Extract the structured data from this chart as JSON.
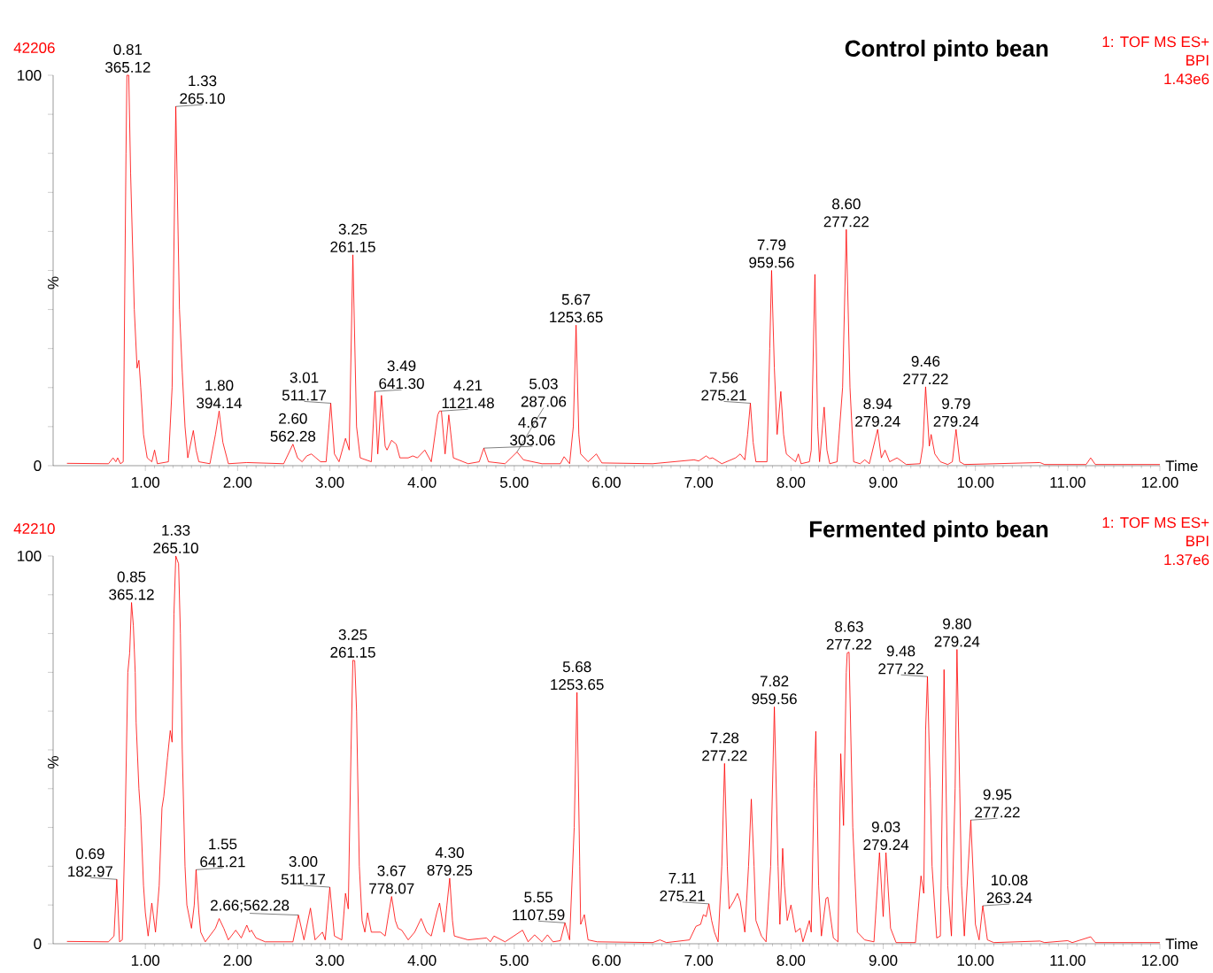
{
  "chart_data": [
    {
      "type": "line",
      "title": "Control pinto bean",
      "subtitle": "42206",
      "xlabel": "Time",
      "ylabel": "%",
      "color": "#ff0000",
      "xlim": [
        0,
        12
      ],
      "ylim": [
        0,
        100
      ],
      "xticks": [
        {
          "value": 1,
          "label": "1.00"
        },
        {
          "value": 2,
          "label": "2.00"
        },
        {
          "value": 3,
          "label": "3.00"
        },
        {
          "value": 4,
          "label": "4.00"
        },
        {
          "value": 5,
          "label": "5.00"
        },
        {
          "value": 6,
          "label": "6.00"
        },
        {
          "value": 7,
          "label": "7.00"
        },
        {
          "value": 8,
          "label": "8.00"
        },
        {
          "value": 9,
          "label": "9.00"
        },
        {
          "value": 10,
          "label": "10.00"
        },
        {
          "value": 11,
          "label": "11.00"
        },
        {
          "value": 12,
          "label": "12.00"
        }
      ],
      "yticks": [
        0,
        {
          "value": 10,
          "label": null
        },
        {
          "value": 20,
          "label": null
        },
        {
          "value": 30,
          "label": null
        },
        {
          "value": 40,
          "label": null
        },
        {
          "value": 50,
          "label": null
        },
        {
          "value": 60,
          "label": null
        },
        {
          "value": 70,
          "label": null
        },
        {
          "value": 80,
          "label": null
        },
        {
          "value": 90,
          "label": null
        },
        100
      ],
      "x": [
        0.15,
        0.6,
        0.65,
        0.68,
        0.7,
        0.73,
        0.76,
        0.79,
        0.8,
        0.82,
        0.84,
        0.88,
        0.91,
        0.93,
        0.95,
        0.98,
        1.02,
        1.07,
        1.1,
        1.13,
        1.25,
        1.29,
        1.33,
        1.37,
        1.4,
        1.43,
        1.46,
        1.52,
        1.55,
        1.58,
        1.7,
        1.76,
        1.8,
        1.84,
        1.9,
        2.1,
        2.5,
        2.6,
        2.65,
        2.7,
        2.75,
        2.8,
        2.85,
        2.9,
        2.96,
        3.01,
        3.05,
        3.1,
        3.17,
        3.21,
        3.25,
        3.29,
        3.33,
        3.45,
        3.49,
        3.52,
        3.56,
        3.6,
        3.62,
        3.67,
        3.72,
        3.76,
        3.85,
        3.9,
        3.95,
        4.03,
        4.1,
        4.17,
        4.19,
        4.21,
        4.25,
        4.29,
        4.34,
        4.5,
        4.62,
        4.67,
        4.72,
        4.9,
        5.03,
        5.1,
        5.3,
        5.5,
        5.54,
        5.6,
        5.64,
        5.67,
        5.7,
        5.72,
        5.8,
        5.89,
        5.95,
        6.5,
        6.95,
        7.0,
        7.08,
        7.12,
        7.15,
        7.25,
        7.4,
        7.45,
        7.5,
        7.53,
        7.56,
        7.59,
        7.62,
        7.74,
        7.77,
        7.79,
        7.82,
        7.85,
        7.89,
        7.92,
        7.95,
        8.0,
        8.05,
        8.08,
        8.11,
        8.2,
        8.22,
        8.26,
        8.29,
        8.31,
        8.36,
        8.39,
        8.42,
        8.5,
        8.56,
        8.6,
        8.64,
        8.68,
        8.75,
        8.8,
        8.85,
        8.94,
        8.98,
        9.02,
        9.07,
        9.15,
        9.25,
        9.4,
        9.43,
        9.46,
        9.5,
        9.52,
        9.56,
        9.62,
        9.7,
        9.75,
        9.79,
        9.83,
        9.88,
        10.7,
        10.75,
        11.2,
        11.25,
        11.3,
        12.0
      ],
      "values": [
        0.6,
        0.5,
        2,
        1,
        2,
        0.5,
        1,
        80,
        100,
        100,
        75,
        40,
        25,
        27,
        20,
        8,
        2,
        1,
        4,
        0.5,
        1,
        20,
        92,
        40,
        24,
        10,
        2,
        9,
        4,
        1,
        0.5,
        8,
        14,
        6,
        0.5,
        0.8,
        0.5,
        5.5,
        2,
        1,
        2.5,
        3,
        2,
        1,
        1,
        16,
        3,
        1,
        7,
        4,
        54,
        10,
        2,
        1,
        19,
        3,
        18,
        5,
        4,
        6.5,
        5.5,
        2,
        2,
        2.5,
        2,
        4,
        1,
        13,
        14,
        14,
        3,
        13,
        2,
        0.5,
        1,
        4.5,
        1,
        0.5,
        3.5,
        1.5,
        0.5,
        0.5,
        2.3,
        0.5,
        10,
        36,
        8,
        3,
        1,
        3,
        0.7,
        0.5,
        1.5,
        1.2,
        2.5,
        1.8,
        2,
        0.5,
        2,
        3,
        1.5,
        8,
        16,
        6,
        1,
        1,
        30,
        50,
        25,
        8,
        19,
        8,
        3,
        2,
        1,
        3,
        0.5,
        1,
        4,
        49,
        10,
        1,
        15,
        4,
        0.5,
        1,
        20,
        60.5,
        20,
        1,
        0.5,
        1.5,
        0.5,
        9.3,
        2,
        4,
        1,
        2,
        0.3,
        0.5,
        5,
        20.2,
        5,
        8,
        3,
        1,
        0.3,
        1,
        9.3,
        1,
        0.3,
        0.8,
        0.3,
        0.3,
        2,
        0.3,
        0.3
      ],
      "annotations": [
        {
          "text": "0.81 365.12",
          "x": 0.81,
          "y": 100
        },
        {
          "text": "1.33 265.10",
          "x": 1.33,
          "y": 92
        },
        {
          "text": "1.80 394.14",
          "x": 1.8,
          "y": 14
        },
        {
          "text": "2.60 562.28",
          "x": 2.6,
          "y": 5.5
        },
        {
          "text": "3.01 511.17",
          "x": 3.01,
          "y": 16
        },
        {
          "text": "3.25 261.15",
          "x": 3.25,
          "y": 54
        },
        {
          "text": "3.49 641.30",
          "x": 3.49,
          "y": 19
        },
        {
          "text": "4.21 1121.48",
          "x": 4.21,
          "y": 14
        },
        {
          "text": "4.67 303.06",
          "x": 4.67,
          "y": 4.5
        },
        {
          "text": "5.03 287.06",
          "x": 5.03,
          "y": 3.5
        },
        {
          "text": "5.67 1253.65",
          "x": 5.67,
          "y": 36
        },
        {
          "text": "7.56 275.21",
          "x": 7.56,
          "y": 16
        },
        {
          "text": "7.79 959.56",
          "x": 7.79,
          "y": 50
        },
        {
          "text": "8.60 277.22",
          "x": 8.6,
          "y": 60.5
        },
        {
          "text": "8.94 279.24",
          "x": 8.94,
          "y": 9.3
        },
        {
          "text": "9.46 277.22",
          "x": 9.46,
          "y": 20.2
        },
        {
          "text": "9.79 279.24",
          "x": 9.79,
          "y": 9.3
        },
        "1: TOF MS ES+",
        "BPI",
        "1.43e6"
      ]
    },
    {
      "type": "line",
      "title": "Fermented pinto bean",
      "subtitle": "42210",
      "xlabel": "Time",
      "ylabel": "%",
      "color": "#ff0000",
      "xlim": [
        0,
        12
      ],
      "ylim": [
        0,
        100
      ],
      "xticks": [
        {
          "value": 1,
          "label": "1.00"
        },
        {
          "value": 2,
          "label": "2.00"
        },
        {
          "value": 3,
          "label": "3.00"
        },
        {
          "value": 4,
          "label": "4.00"
        },
        {
          "value": 5,
          "label": "5.00"
        },
        {
          "value": 6,
          "label": "6.00"
        },
        {
          "value": 7,
          "label": "7.00"
        },
        {
          "value": 8,
          "label": "8.00"
        },
        {
          "value": 9,
          "label": "9.00"
        },
        {
          "value": 10,
          "label": "10.00"
        },
        {
          "value": 11,
          "label": "11.00"
        },
        {
          "value": 12,
          "label": "12.00"
        }
      ],
      "yticks": [
        0,
        {
          "value": 10,
          "label": null
        },
        {
          "value": 20,
          "label": null
        },
        {
          "value": 30,
          "label": null
        },
        {
          "value": 40,
          "label": null
        },
        {
          "value": 50,
          "label": null
        },
        {
          "value": 60,
          "label": null
        },
        {
          "value": 70,
          "label": null
        },
        {
          "value": 80,
          "label": null
        },
        {
          "value": 90,
          "label": null
        },
        100
      ],
      "x": [
        0.15,
        0.6,
        0.66,
        0.69,
        0.72,
        0.75,
        0.78,
        0.81,
        0.83,
        0.85,
        0.87,
        0.88,
        0.89,
        0.9,
        0.93,
        0.95,
        0.98,
        1.0,
        1.03,
        1.07,
        1.11,
        1.15,
        1.18,
        1.2,
        1.24,
        1.27,
        1.29,
        1.31,
        1.33,
        1.36,
        1.38,
        1.4,
        1.43,
        1.45,
        1.5,
        1.53,
        1.55,
        1.58,
        1.6,
        1.65,
        1.76,
        1.8,
        1.85,
        1.9,
        1.98,
        2.04,
        2.1,
        2.13,
        2.15,
        2.2,
        2.3,
        2.6,
        2.66,
        2.72,
        2.79,
        2.84,
        2.92,
        2.95,
        3.0,
        3.05,
        3.13,
        3.17,
        3.2,
        3.23,
        3.25,
        3.27,
        3.29,
        3.32,
        3.35,
        3.38,
        3.41,
        3.45,
        3.55,
        3.6,
        3.64,
        3.67,
        3.71,
        3.74,
        3.78,
        3.85,
        3.92,
        3.99,
        4.05,
        4.1,
        4.16,
        4.19,
        4.24,
        4.27,
        4.3,
        4.33,
        4.35,
        4.5,
        4.7,
        4.74,
        4.78,
        4.9,
        5.09,
        5.15,
        5.22,
        5.3,
        5.36,
        5.42,
        5.5,
        5.55,
        5.6,
        5.65,
        5.68,
        5.71,
        5.72,
        5.76,
        5.8,
        5.9,
        6.5,
        6.58,
        6.65,
        6.9,
        6.97,
        7.02,
        7.05,
        7.08,
        7.11,
        7.14,
        7.17,
        7.21,
        7.25,
        7.28,
        7.31,
        7.33,
        7.38,
        7.42,
        7.45,
        7.5,
        7.54,
        7.57,
        7.6,
        7.62,
        7.68,
        7.73,
        7.78,
        7.82,
        7.86,
        7.88,
        7.91,
        7.93,
        7.96,
        8.0,
        8.05,
        8.1,
        8.13,
        8.2,
        8.22,
        8.25,
        8.27,
        8.3,
        8.33,
        8.38,
        8.4,
        8.46,
        8.51,
        8.54,
        8.57,
        8.6,
        8.61,
        8.63,
        8.67,
        8.72,
        8.8,
        8.9,
        8.96,
        9.0,
        9.03,
        9.08,
        9.14,
        9.35,
        9.41,
        9.44,
        9.46,
        9.48,
        9.51,
        9.53,
        9.58,
        9.62,
        9.66,
        9.7,
        9.74,
        9.78,
        9.8,
        9.83,
        9.85,
        9.88,
        9.95,
        10.0,
        10.04,
        10.08,
        10.13,
        10.2,
        10.7,
        10.75,
        11.0,
        11.05,
        11.25,
        11.3,
        12.0
      ],
      "values": [
        0.6,
        0.5,
        2,
        16.6,
        0.5,
        1,
        30,
        70,
        75,
        88,
        82,
        76,
        70,
        57,
        40,
        33,
        15,
        8,
        2,
        10.5,
        3,
        15,
        35,
        38,
        48,
        55,
        52,
        85,
        100,
        98,
        80,
        50,
        20,
        10,
        4,
        10,
        19.1,
        8,
        3,
        0.5,
        4,
        6.5,
        4,
        1,
        3.5,
        1.5,
        4.8,
        3,
        3.5,
        1.5,
        0.5,
        0.5,
        7.4,
        1,
        9.2,
        1,
        3,
        1,
        14.6,
        2,
        1,
        13,
        9,
        50,
        73.1,
        73,
        60,
        20,
        6,
        3,
        8,
        3,
        3,
        2,
        8,
        12.2,
        6,
        4,
        3.5,
        1,
        3,
        6.5,
        3,
        2,
        8,
        10.5,
        3,
        10,
        16.9,
        6,
        2,
        1,
        1.5,
        0.5,
        2,
        0.5,
        3.5,
        0.5,
        2.3,
        0.5,
        2.3,
        0.5,
        0.8,
        5.4,
        1,
        30,
        64.8,
        20,
        5,
        7.5,
        1,
        0.5,
        0.3,
        1,
        0.3,
        1,
        4.5,
        5,
        7.5,
        7,
        10.3,
        6,
        3,
        0.5,
        20,
        46.5,
        20,
        9,
        11,
        13,
        11,
        3,
        20,
        37.3,
        20,
        6,
        2,
        0.5,
        20,
        61.1,
        20,
        5,
        24.6,
        15,
        6,
        10,
        3,
        4,
        0.5,
        6,
        3,
        40,
        54.8,
        15,
        2,
        11.7,
        12,
        1.5,
        0.5,
        49,
        30.5,
        70,
        75,
        75.2,
        30,
        3,
        1,
        0.5,
        23.5,
        7,
        23.5,
        4,
        0.3,
        0.3,
        17.5,
        13,
        55,
        68.9,
        40,
        20,
        1.5,
        2,
        70.7,
        15,
        2,
        40,
        75.9,
        40,
        15,
        2,
        31.9,
        5,
        1,
        9.8,
        1,
        0.3,
        0.7,
        0.3,
        0.8,
        0.3,
        1.8,
        0.3,
        0.3
      ],
      "annotations": [
        {
          "text": "0.69 182.97",
          "x": 0.69,
          "y": 16.6
        },
        {
          "text": "0.85 365.12",
          "x": 0.85,
          "y": 88
        },
        {
          "text": "1.33 265.10",
          "x": 1.33,
          "y": 100
        },
        {
          "text": "1.55 641.21",
          "x": 1.55,
          "y": 19.1
        },
        {
          "text": "2.66;562.28",
          "x": 2.66,
          "y": 7.4
        },
        {
          "text": "3.00 511.17",
          "x": 3.0,
          "y": 14.6
        },
        {
          "text": "3.25 261.15",
          "x": 3.25,
          "y": 73.1
        },
        {
          "text": "3.67 778.07",
          "x": 3.67,
          "y": 12.2
        },
        {
          "text": "4.30 879.25",
          "x": 4.3,
          "y": 16.9
        },
        {
          "text": "5.55 1107.59",
          "x": 5.55,
          "y": 5.4
        },
        {
          "text": "5.68 1253.65",
          "x": 5.68,
          "y": 64.8
        },
        {
          "text": "7.11 275.21",
          "x": 7.11,
          "y": 10.3
        },
        {
          "text": "7.28 277.22",
          "x": 7.28,
          "y": 46.5
        },
        {
          "text": "7.82 959.56",
          "x": 7.82,
          "y": 61.1
        },
        {
          "text": "8.63 277.22",
          "x": 8.63,
          "y": 75.2
        },
        {
          "text": "9.03 279.24",
          "x": 9.03,
          "y": 23.5
        },
        {
          "text": "9.48 277.22",
          "x": 9.48,
          "y": 68.9
        },
        {
          "text": "9.80 279.24",
          "x": 9.8,
          "y": 75.9
        },
        {
          "text": "9.95 277.22",
          "x": 9.95,
          "y": 31.9
        },
        {
          "text": "10.08 263.24",
          "x": 10.08,
          "y": 9.8
        },
        "1: TOF MS ES+",
        "BPI",
        "1.37e6"
      ]
    }
  ]
}
